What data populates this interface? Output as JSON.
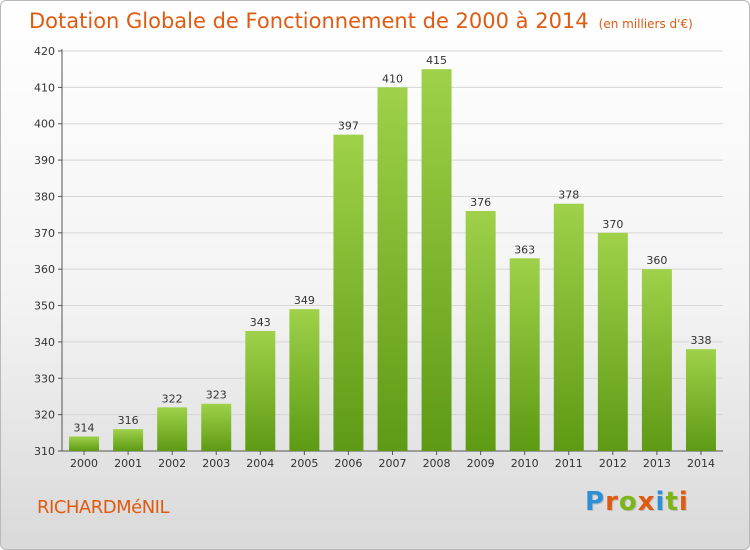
{
  "title": "Dotation Globale de Fonctionnement de 2000 à 2014",
  "units": "(en milliers d'€)",
  "commune": "RICHARDMéNIL",
  "logo": {
    "text": "Proxiti",
    "letters": [
      {
        "ch": "P",
        "color": "#2f8fd6"
      },
      {
        "ch": "r",
        "color": "#e05a10"
      },
      {
        "ch": "o",
        "color": "#7cb518"
      },
      {
        "ch": "x",
        "color": "#e05a10"
      },
      {
        "ch": "i",
        "color": "#2f8fd6"
      },
      {
        "ch": "t",
        "color": "#7cb518"
      },
      {
        "ch": "i",
        "color": "#e05a10"
      }
    ]
  },
  "colors": {
    "title": "#e05a10",
    "bar_top": "#9fd14a",
    "bar_bottom": "#5e9a14",
    "grid": "#d6d6d6",
    "axis": "#555555"
  },
  "chart_data": {
    "type": "bar",
    "categories": [
      "2000",
      "2001",
      "2002",
      "2003",
      "2004",
      "2005",
      "2006",
      "2007",
      "2008",
      "2009",
      "2010",
      "2011",
      "2012",
      "2013",
      "2014"
    ],
    "values": [
      314,
      316,
      322,
      323,
      343,
      349,
      397,
      410,
      415,
      376,
      363,
      378,
      370,
      360,
      338
    ],
    "ylim": [
      310,
      420
    ],
    "yticks": [
      310,
      320,
      330,
      340,
      350,
      360,
      370,
      380,
      390,
      400,
      410,
      420
    ],
    "grid": true,
    "data_labels": true
  }
}
